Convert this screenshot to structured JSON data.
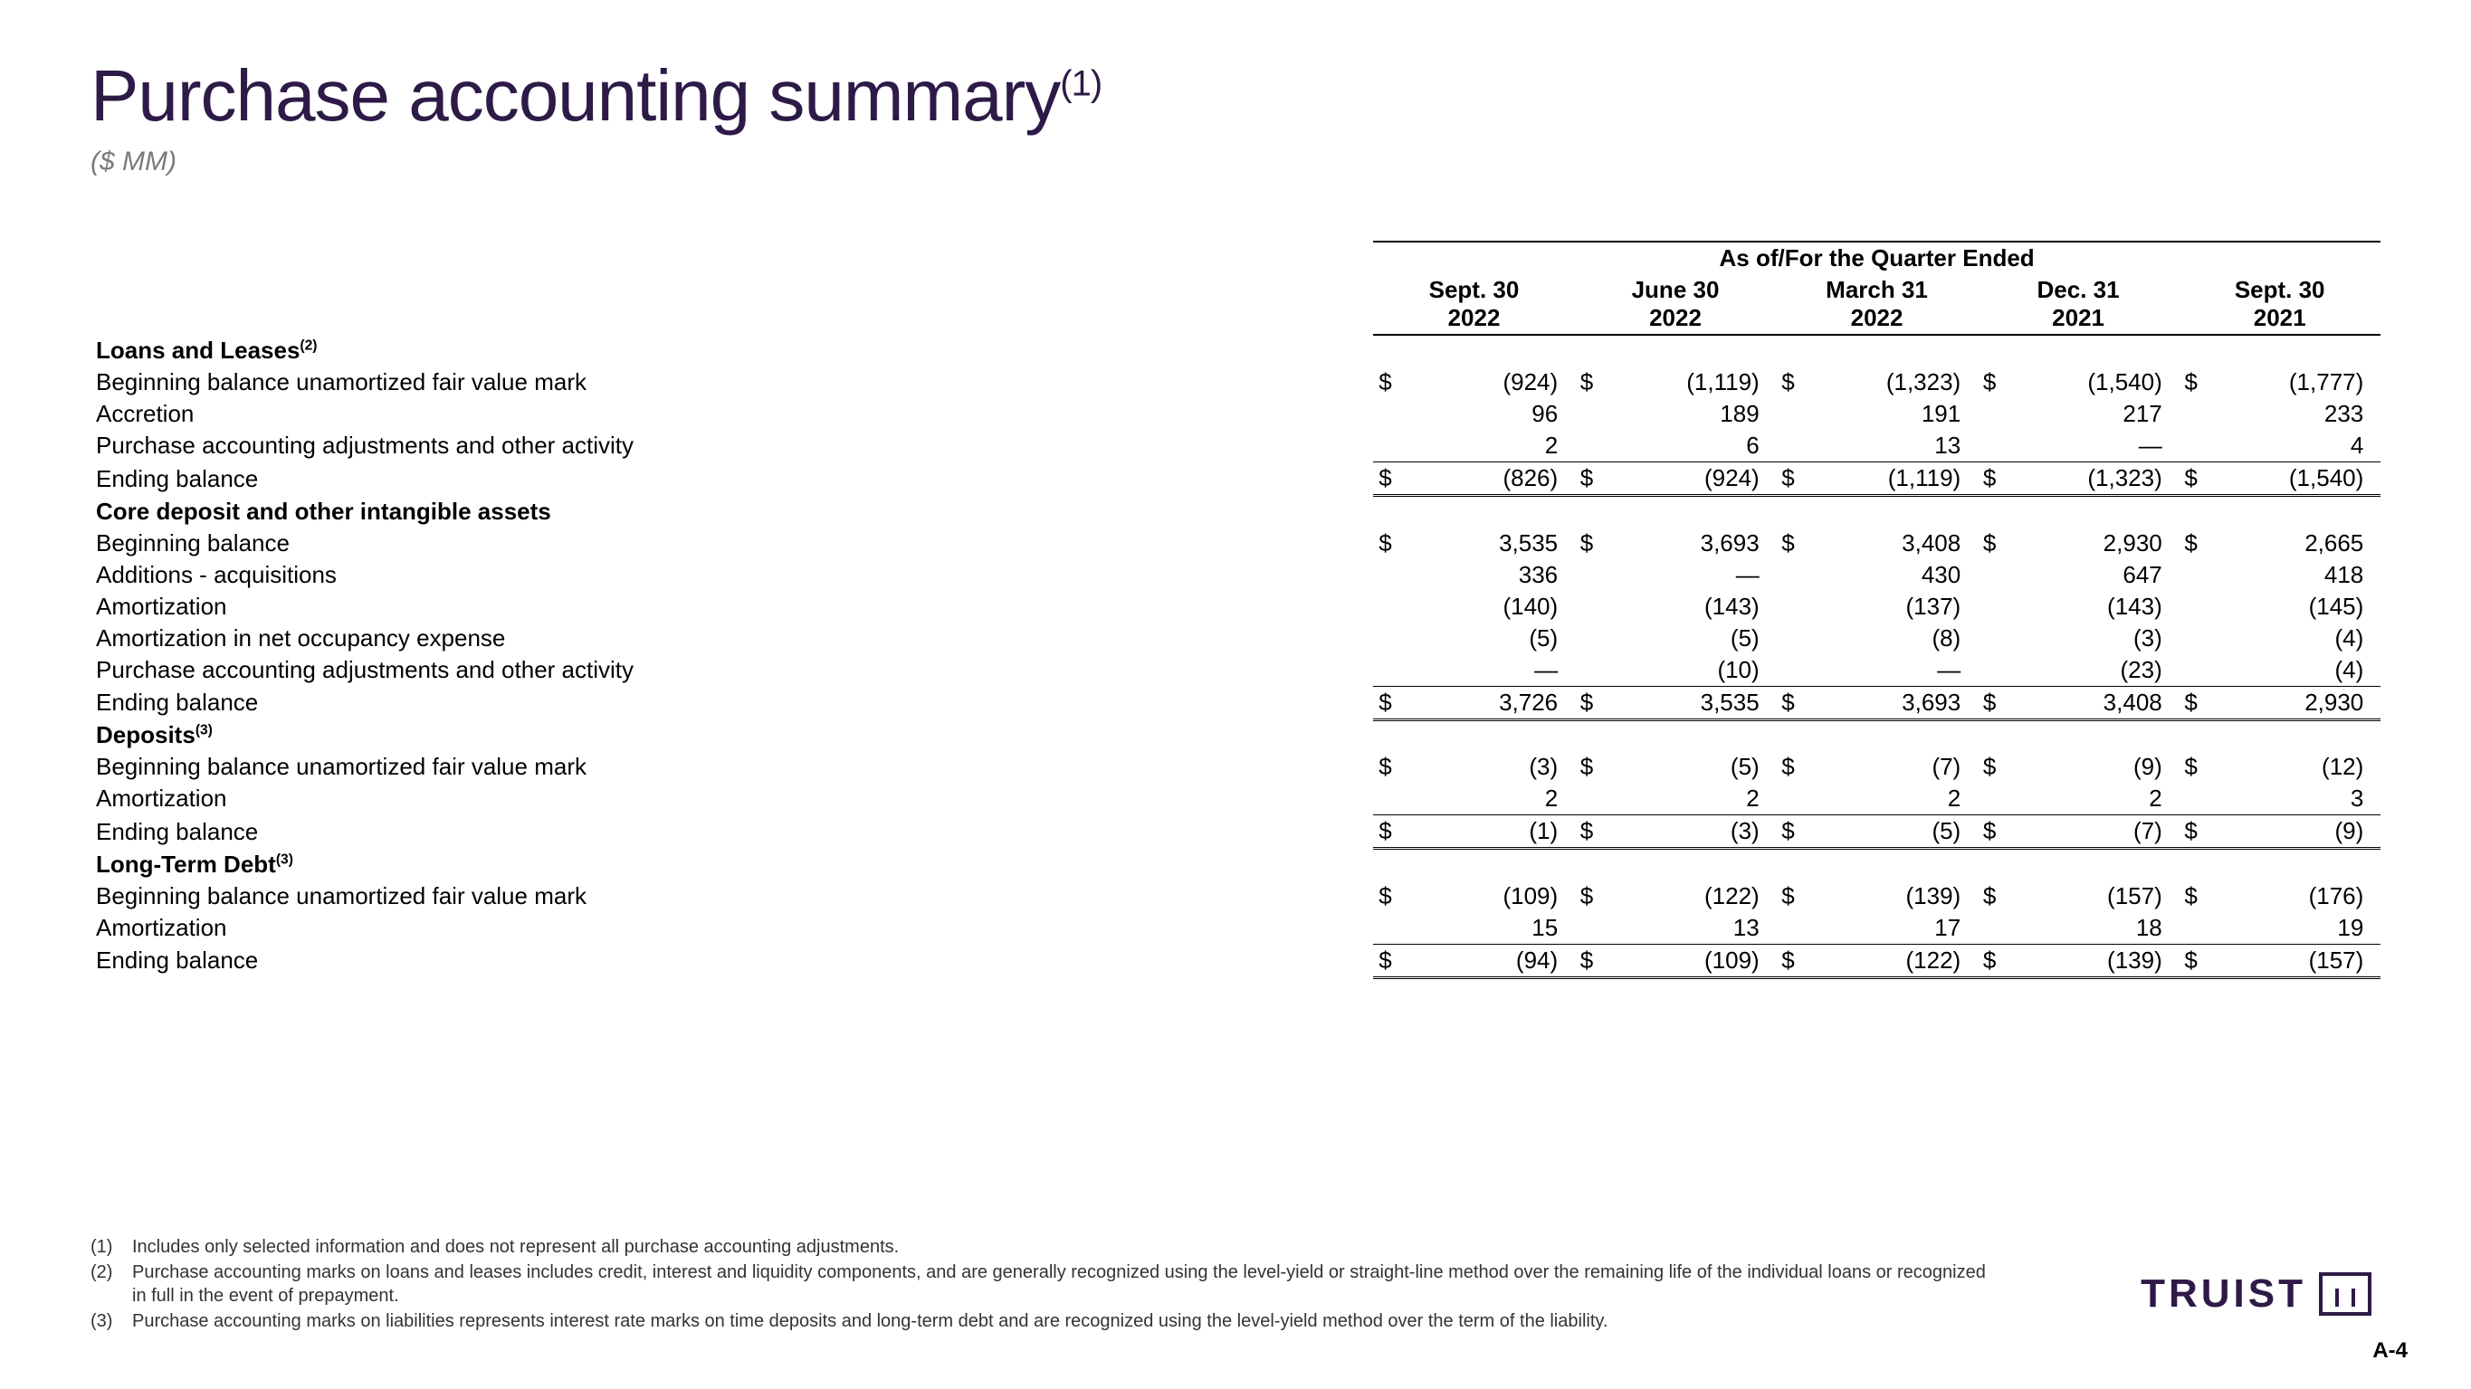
{
  "colors": {
    "title": "#2e1a47",
    "subtitle": "#7a7a7a",
    "text": "#000000",
    "background": "#ffffff",
    "border": "#000000"
  },
  "typography": {
    "title_fontsize": 80,
    "subtitle_fontsize": 30,
    "table_fontsize": 26,
    "footnote_fontsize": 20
  },
  "title": "Purchase accounting summary",
  "title_sup": "(1)",
  "subtitle": "($ MM)",
  "table_header_super": "As of/For the Quarter Ended",
  "columns": [
    {
      "line1": "Sept. 30",
      "line2": "2022"
    },
    {
      "line1": "June 30",
      "line2": "2022"
    },
    {
      "line1": "March 31",
      "line2": "2022"
    },
    {
      "line1": "Dec. 31",
      "line2": "2021"
    },
    {
      "line1": "Sept. 30",
      "line2": "2021"
    }
  ],
  "sections": [
    {
      "title": "Loans and Leases",
      "sup": "(2)",
      "rows": [
        {
          "label": "Beginning balance unamortized fair value mark",
          "dollar": true,
          "vals": [
            "(924)",
            "(1,119)",
            "(1,323)",
            "(1,540)",
            "(1,777)"
          ]
        },
        {
          "label": "Accretion",
          "vals": [
            "96",
            "189",
            "191",
            "217",
            "233"
          ]
        },
        {
          "label": "Purchase accounting adjustments and other activity",
          "vals": [
            "2",
            "6",
            "13",
            "—",
            "4"
          ],
          "sum_below": true
        },
        {
          "label": "Ending balance",
          "dollar": true,
          "indent": true,
          "total": true,
          "vals": [
            "(826)",
            "(924)",
            "(1,119)",
            "(1,323)",
            "(1,540)"
          ]
        }
      ]
    },
    {
      "title": "Core deposit and other intangible assets",
      "rows": [
        {
          "label": "Beginning balance",
          "dollar": true,
          "vals": [
            "3,535",
            "3,693",
            "3,408",
            "2,930",
            "2,665"
          ]
        },
        {
          "label": "Additions - acquisitions",
          "vals": [
            "336",
            "—",
            "430",
            "647",
            "418"
          ]
        },
        {
          "label": "Amortization",
          "vals": [
            "(140)",
            "(143)",
            "(137)",
            "(143)",
            "(145)"
          ]
        },
        {
          "label": "Amortization in net occupancy expense",
          "vals": [
            "(5)",
            "(5)",
            "(8)",
            "(3)",
            "(4)"
          ]
        },
        {
          "label": "Purchase accounting adjustments and other activity",
          "vals": [
            "—",
            "(10)",
            "—",
            "(23)",
            "(4)"
          ],
          "sum_below": true
        },
        {
          "label": "Ending balance",
          "dollar": true,
          "indent": true,
          "total": true,
          "vals": [
            "3,726",
            "3,535",
            "3,693",
            "3,408",
            "2,930"
          ]
        }
      ]
    },
    {
      "title": "Deposits",
      "sup": "(3)",
      "rows": [
        {
          "label": "Beginning balance unamortized fair value mark",
          "dollar": true,
          "vals": [
            "(3)",
            "(5)",
            "(7)",
            "(9)",
            "(12)"
          ]
        },
        {
          "label": "Amortization",
          "vals": [
            "2",
            "2",
            "2",
            "2",
            "3"
          ],
          "sum_below": true
        },
        {
          "label": "Ending balance",
          "dollar": true,
          "indent": true,
          "total": true,
          "vals": [
            "(1)",
            "(3)",
            "(5)",
            "(7)",
            "(9)"
          ]
        }
      ]
    },
    {
      "title": "Long-Term Debt",
      "sup": "(3)",
      "rows": [
        {
          "label": "Beginning balance unamortized fair value mark",
          "dollar": true,
          "vals": [
            "(109)",
            "(122)",
            "(139)",
            "(157)",
            "(176)"
          ]
        },
        {
          "label": "Amortization",
          "vals": [
            "15",
            "13",
            "17",
            "18",
            "19"
          ],
          "sum_below": true
        },
        {
          "label": "Ending balance",
          "dollar": true,
          "indent": true,
          "total": true,
          "vals": [
            "(94)",
            "(109)",
            "(122)",
            "(139)",
            "(157)"
          ]
        }
      ]
    }
  ],
  "footnotes": [
    {
      "num": "(1)",
      "text": "Includes only selected information and does not represent all purchase accounting adjustments."
    },
    {
      "num": "(2)",
      "text": "Purchase accounting marks on loans and leases includes credit, interest and liquidity components, and are generally recognized using the level-yield or straight-line method over the remaining life of the individual loans or recognized in full in the event of prepayment."
    },
    {
      "num": "(3)",
      "text": "Purchase accounting marks on liabilities represents interest rate marks on time deposits and long-term debt and are recognized using the level-yield method over the term of the liability."
    }
  ],
  "logo_text": "TRUIST",
  "page_number": "A-4"
}
